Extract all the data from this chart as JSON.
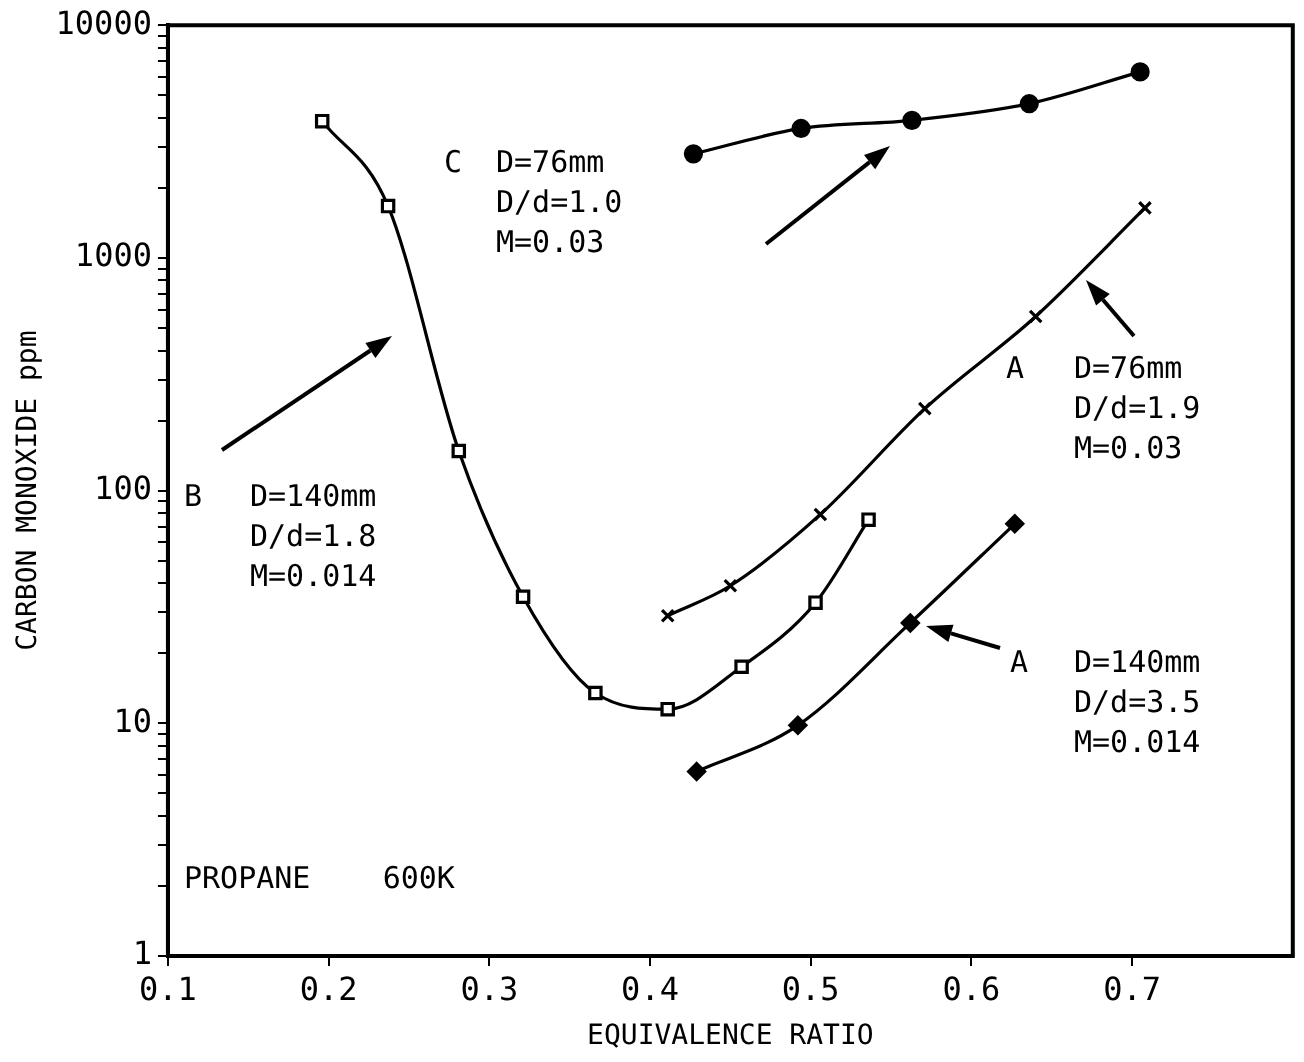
{
  "chart_data": {
    "type": "line",
    "xlabel": "EQUIVALENCE RATIO",
    "ylabel": "CARBON MONOXIDE ppm",
    "log": "y",
    "xlim": [
      0.1,
      0.8
    ],
    "xticks": [
      0.1,
      0.2,
      0.3,
      0.4,
      0.5,
      0.6,
      0.7
    ],
    "ylim": [
      1,
      10000
    ],
    "yticks": [
      1,
      {
        "value": 2,
        "label": null
      },
      {
        "value": 3,
        "label": null
      },
      {
        "value": 4,
        "label": null
      },
      {
        "value": 5,
        "label": null
      },
      {
        "value": 6,
        "label": null
      },
      {
        "value": 7,
        "label": null
      },
      {
        "value": 8,
        "label": null
      },
      {
        "value": 9,
        "label": null
      },
      10,
      {
        "value": 20,
        "label": null
      },
      {
        "value": 30,
        "label": null
      },
      {
        "value": 40,
        "label": null
      },
      {
        "value": 50,
        "label": null
      },
      {
        "value": 60,
        "label": null
      },
      {
        "value": 70,
        "label": null
      },
      {
        "value": 80,
        "label": null
      },
      {
        "value": 90,
        "label": null
      },
      100,
      {
        "value": 200,
        "label": null
      },
      {
        "value": 300,
        "label": null
      },
      {
        "value": 400,
        "label": null
      },
      {
        "value": 500,
        "label": null
      },
      {
        "value": 600,
        "label": null
      },
      {
        "value": 700,
        "label": null
      },
      {
        "value": 800,
        "label": null
      },
      {
        "value": 900,
        "label": null
      },
      1000,
      {
        "value": 2000,
        "label": null
      },
      {
        "value": 3000,
        "label": null
      },
      {
        "value": 4000,
        "label": null
      },
      {
        "value": 5000,
        "label": null
      },
      {
        "value": 6000,
        "label": null
      },
      {
        "value": 7000,
        "label": null
      },
      {
        "value": 8000,
        "label": null
      },
      {
        "value": 9000,
        "label": null
      },
      10000
    ],
    "series": [
      {
        "color": "#000000",
        "marker": "circle",
        "x": [
          0.427,
          0.494,
          0.563,
          0.636,
          0.705
        ],
        "values": [
          2800,
          3600,
          3900,
          4600,
          6300
        ]
      },
      {
        "color": "#000000",
        "marker": "cross",
        "x": [
          0.411,
          0.45,
          0.506,
          0.571,
          0.64,
          0.708
        ],
        "values": [
          29,
          39,
          79,
          225,
          560,
          1640
        ]
      },
      {
        "color": "#000000",
        "marker": "square",
        "x": [
          0.196,
          0.237,
          0.281,
          0.321,
          0.366,
          0.411,
          0.457,
          0.503,
          0.536
        ],
        "values": [
          3870,
          1670,
          148,
          35,
          13.5,
          11.5,
          17.5,
          33,
          75
        ]
      },
      {
        "color": "#000000",
        "marker": "diamond",
        "x": [
          0.429,
          0.492,
          0.562,
          0.627
        ],
        "values": [
          6.2,
          9.8,
          27,
          72
        ]
      }
    ],
    "annotations": [
      "C",
      "A",
      "B",
      "A",
      "D=76mm\nD/d=1.0\nM=0.03",
      "D=76mm\nD/d=1.9\nM=0.03",
      "D=140mm\nD/d=1.8\nM=0.014",
      "D=140mm\nD/d=3.5\nM=0.014",
      "PROPANE    600K"
    ]
  }
}
